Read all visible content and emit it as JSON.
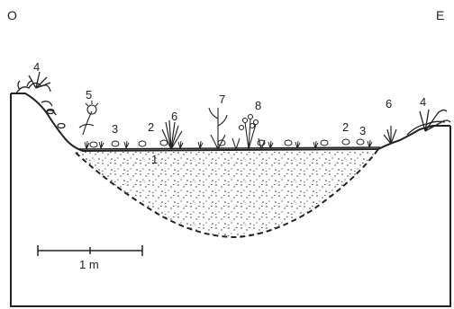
{
  "orientation": {
    "west": "O",
    "east": "E"
  },
  "scale_bar": {
    "label": "1 m"
  },
  "vegetation_labels": {
    "n1": "1",
    "n2_left": "2",
    "n2_right": "2",
    "n3_left": "3",
    "n3_right": "3",
    "n4_left": "4",
    "n4_right": "4",
    "n5": "5",
    "n6_left": "6",
    "n6_right": "6",
    "n7": "7",
    "n8": "8"
  },
  "colors": {
    "ink": "#222222",
    "sediment_stipple": "#333333",
    "background": "#ffffff"
  }
}
